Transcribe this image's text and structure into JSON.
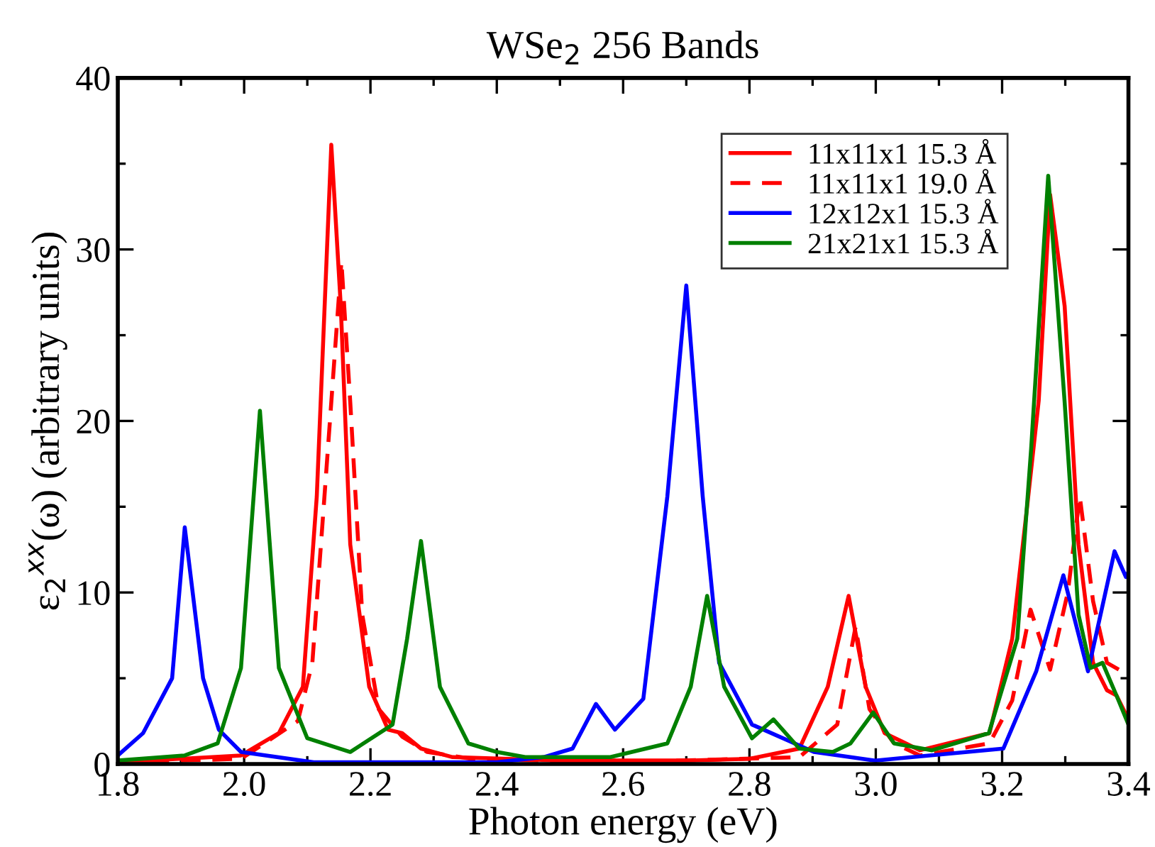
{
  "chart_data": {
    "type": "line",
    "title": "WSe$_{2}$ 256 Bands",
    "xlabel": "Photon energy (eV)",
    "ylabel": "ε$_{2}$$^{xx}$(ω) (arbitrary units)",
    "xlim": [
      1.8,
      3.4
    ],
    "ylim": [
      0,
      40
    ],
    "xticks": [
      1.8,
      {
        "value": 2,
        "label": "2.0"
      },
      2.2,
      2.4,
      2.6,
      2.8,
      {
        "value": 3,
        "label": "3.0"
      },
      3.2,
      3.4
    ],
    "yticks": [
      0,
      10,
      20,
      30,
      40
    ],
    "grid": false,
    "legend": "top right",
    "marker": "none",
    "series": [
      {
        "name": "11x11x1 15.3 Å",
        "color": "#ff0000",
        "line_style": "solid",
        "x": [
          1.8,
          1.995,
          2.055,
          2.093,
          2.115,
          2.138,
          2.153,
          2.168,
          2.198,
          2.228,
          2.25,
          2.28,
          2.33,
          2.5,
          2.7,
          2.8,
          2.879,
          2.924,
          2.957,
          2.984,
          3.014,
          3.07,
          3.18,
          3.216,
          3.239,
          3.258,
          3.276,
          3.299,
          3.321,
          3.344,
          3.366,
          3.381,
          3.4
        ],
        "values": [
          0.1,
          0.5,
          1.8,
          4.5,
          15.6,
          36.1,
          26.7,
          12.8,
          4.5,
          2.0,
          1.8,
          0.9,
          0.4,
          0.2,
          0.2,
          0.3,
          0.9,
          4.5,
          9.8,
          4.5,
          1.8,
          0.8,
          1.8,
          7.3,
          14.8,
          21.2,
          33.2,
          26.7,
          12.8,
          5.9,
          4.3,
          4.0,
          2.6
        ]
      },
      {
        "name": "11x11x1 19.0 Å",
        "color": "#ff0000",
        "line_style": "dashed",
        "x": [
          1.8,
          1.995,
          2.085,
          2.108,
          2.138,
          2.154,
          2.168,
          2.187,
          2.213,
          2.25,
          2.29,
          2.36,
          2.6,
          2.879,
          2.939,
          2.968,
          2.99,
          3.029,
          3.07,
          3.18,
          3.216,
          3.245,
          3.276,
          3.304,
          3.323,
          3.344,
          3.366,
          3.385,
          3.4
        ],
        "values": [
          0.1,
          0.3,
          2.5,
          5.9,
          21.1,
          29.3,
          21.1,
          8.7,
          3.2,
          1.6,
          0.7,
          0.3,
          0.1,
          0.4,
          2.3,
          8.0,
          3.2,
          1.2,
          0.5,
          1.2,
          3.7,
          9.0,
          5.5,
          10.0,
          15.6,
          9.5,
          5.9,
          5.5,
          5.0
        ]
      },
      {
        "name": "12x12x1 15.3 Å",
        "color": "#0000ff",
        "line_style": "solid",
        "x": [
          1.8,
          1.84,
          1.886,
          1.906,
          1.935,
          1.96,
          1.995,
          2.11,
          2.4,
          2.474,
          2.52,
          2.557,
          2.587,
          2.632,
          2.67,
          2.7,
          2.726,
          2.752,
          2.804,
          2.902,
          2.999,
          3.202,
          3.254,
          3.297,
          3.336,
          3.378,
          3.396,
          3.4
        ],
        "values": [
          0.5,
          1.8,
          5.0,
          13.8,
          5.0,
          2.0,
          0.7,
          0.1,
          0.1,
          0.4,
          0.9,
          3.5,
          2.0,
          3.8,
          15.6,
          27.9,
          15.6,
          5.9,
          2.3,
          0.7,
          0.2,
          0.9,
          5.4,
          11.0,
          5.4,
          12.4,
          10.9,
          11.2
        ]
      },
      {
        "name": "21x21x1 15.3 Å",
        "color": "#008000",
        "line_style": "solid",
        "x": [
          1.8,
          1.906,
          1.958,
          1.995,
          2.025,
          2.055,
          2.1,
          2.168,
          2.235,
          2.258,
          2.28,
          2.31,
          2.355,
          2.4,
          2.445,
          2.58,
          2.67,
          2.707,
          2.733,
          2.76,
          2.804,
          2.838,
          2.879,
          2.932,
          2.96,
          2.996,
          3.029,
          3.089,
          3.179,
          3.224,
          3.246,
          3.273,
          3.299,
          3.321,
          3.34,
          3.359,
          3.381,
          3.4
        ],
        "values": [
          0.2,
          0.5,
          1.2,
          5.6,
          20.6,
          5.6,
          1.5,
          0.7,
          2.3,
          7.3,
          13.0,
          4.5,
          1.2,
          0.7,
          0.4,
          0.4,
          1.2,
          4.5,
          9.8,
          4.5,
          1.5,
          2.6,
          0.9,
          0.7,
          1.2,
          3.0,
          1.2,
          0.8,
          1.8,
          7.3,
          18.4,
          34.3,
          21.1,
          8.7,
          5.6,
          5.9,
          4.0,
          2.3
        ]
      }
    ]
  }
}
